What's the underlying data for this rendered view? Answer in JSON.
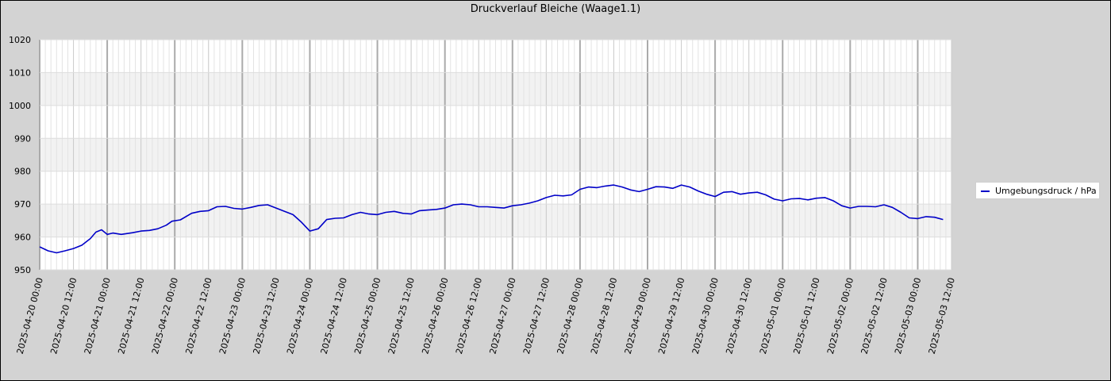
{
  "chart_data": {
    "type": "line",
    "title": "Druckverlauf Bleiche (Waage1.1)",
    "xlabel": "",
    "ylabel": "",
    "ylim": [
      950,
      1020
    ],
    "yticks": [
      950,
      960,
      970,
      980,
      990,
      1000,
      1010,
      1020
    ],
    "xlim": [
      "2025-04-20 00:00",
      "2025-05-03 12:00"
    ],
    "xticks": [
      "2025-04-20 00:00",
      "2025-04-20 12:00",
      "2025-04-21 00:00",
      "2025-04-21 12:00",
      "2025-04-22 00:00",
      "2025-04-22 12:00",
      "2025-04-23 00:00",
      "2025-04-23 12:00",
      "2025-04-24 00:00",
      "2025-04-24 12:00",
      "2025-04-25 00:00",
      "2025-04-25 12:00",
      "2025-04-26 00:00",
      "2025-04-26 12:00",
      "2025-04-27 00:00",
      "2025-04-27 12:00",
      "2025-04-28 00:00",
      "2025-04-28 12:00",
      "2025-04-29 00:00",
      "2025-04-29 12:00",
      "2025-04-30 00:00",
      "2025-04-30 12:00",
      "2025-05-01 00:00",
      "2025-05-01 12:00",
      "2025-05-02 00:00",
      "2025-05-02 12:00",
      "2025-05-03 00:00",
      "2025-05-03 12:00"
    ],
    "grid": true,
    "legend_position": "right",
    "colors": {
      "line": "#0000c8",
      "background": "#d3d3d3",
      "plot_bg": "#ffffff",
      "band": "#f2f2f2",
      "major_grid": "#bbbbbb",
      "minor_grid": "#e3e3e3"
    },
    "series": [
      {
        "name": "Umgebungsdruck / hPa",
        "x": [
          "2025-04-20 00:00",
          "2025-04-20 03:00",
          "2025-04-20 06:00",
          "2025-04-20 09:00",
          "2025-04-20 12:00",
          "2025-04-20 15:00",
          "2025-04-20 18:00",
          "2025-04-20 20:00",
          "2025-04-20 22:00",
          "2025-04-21 00:00",
          "2025-04-21 02:00",
          "2025-04-21 05:00",
          "2025-04-21 09:00",
          "2025-04-21 12:00",
          "2025-04-21 15:00",
          "2025-04-21 18:00",
          "2025-04-21 21:00",
          "2025-04-21 23:00",
          "2025-04-22 02:00",
          "2025-04-22 06:00",
          "2025-04-22 09:00",
          "2025-04-22 12:00",
          "2025-04-22 15:00",
          "2025-04-22 18:00",
          "2025-04-22 21:00",
          "2025-04-23 00:00",
          "2025-04-23 03:00",
          "2025-04-23 06:00",
          "2025-04-23 09:00",
          "2025-04-23 12:00",
          "2025-04-23 15:00",
          "2025-04-23 18:00",
          "2025-04-23 21:00",
          "2025-04-24 00:00",
          "2025-04-24 03:00",
          "2025-04-24 06:00",
          "2025-04-24 09:00",
          "2025-04-24 12:00",
          "2025-04-24 15:00",
          "2025-04-24 18:00",
          "2025-04-24 21:00",
          "2025-04-25 00:00",
          "2025-04-25 03:00",
          "2025-04-25 06:00",
          "2025-04-25 09:00",
          "2025-04-25 12:00",
          "2025-04-25 15:00",
          "2025-04-25 18:00",
          "2025-04-25 21:00",
          "2025-04-26 00:00",
          "2025-04-26 03:00",
          "2025-04-26 06:00",
          "2025-04-26 09:00",
          "2025-04-26 12:00",
          "2025-04-26 15:00",
          "2025-04-26 18:00",
          "2025-04-26 21:00",
          "2025-04-27 00:00",
          "2025-04-27 03:00",
          "2025-04-27 06:00",
          "2025-04-27 09:00",
          "2025-04-27 12:00",
          "2025-04-27 15:00",
          "2025-04-27 18:00",
          "2025-04-27 21:00",
          "2025-04-28 00:00",
          "2025-04-28 03:00",
          "2025-04-28 06:00",
          "2025-04-28 09:00",
          "2025-04-28 12:00",
          "2025-04-28 15:00",
          "2025-04-28 18:00",
          "2025-04-28 21:00",
          "2025-04-29 00:00",
          "2025-04-29 03:00",
          "2025-04-29 06:00",
          "2025-04-29 09:00",
          "2025-04-29 12:00",
          "2025-04-29 15:00",
          "2025-04-29 18:00",
          "2025-04-29 21:00",
          "2025-04-30 00:00",
          "2025-04-30 03:00",
          "2025-04-30 06:00",
          "2025-04-30 09:00",
          "2025-04-30 12:00",
          "2025-04-30 15:00",
          "2025-04-30 18:00",
          "2025-04-30 21:00",
          "2025-05-01 00:00",
          "2025-05-01 03:00",
          "2025-05-01 06:00",
          "2025-05-01 09:00",
          "2025-05-01 12:00",
          "2025-05-01 15:00",
          "2025-05-01 18:00",
          "2025-05-01 21:00",
          "2025-05-02 00:00",
          "2025-05-02 03:00",
          "2025-05-02 06:00",
          "2025-05-02 09:00",
          "2025-05-02 12:00",
          "2025-05-02 15:00",
          "2025-05-02 18:00",
          "2025-05-02 21:00",
          "2025-05-03 00:00",
          "2025-05-03 03:00",
          "2025-05-03 06:00",
          "2025-05-03 09:00"
        ],
        "values": [
          957.0,
          955.8,
          955.2,
          955.8,
          956.5,
          957.5,
          959.5,
          961.5,
          962.2,
          960.8,
          961.2,
          960.8,
          961.3,
          961.8,
          962.0,
          962.5,
          963.6,
          964.8,
          965.2,
          967.2,
          967.8,
          968.0,
          969.2,
          969.3,
          968.7,
          968.5,
          969.0,
          969.6,
          969.8,
          968.8,
          967.8,
          966.8,
          964.5,
          961.8,
          962.5,
          965.3,
          965.7,
          965.8,
          966.8,
          967.5,
          967.0,
          966.8,
          967.5,
          967.8,
          967.2,
          967.0,
          968.0,
          968.2,
          968.4,
          968.8,
          969.8,
          970.0,
          969.8,
          969.2,
          969.2,
          969.0,
          968.8,
          969.5,
          969.8,
          970.3,
          971.0,
          972.0,
          972.7,
          972.5,
          972.8,
          974.5,
          975.2,
          975.0,
          975.5,
          975.8,
          975.2,
          974.3,
          973.8,
          974.5,
          975.3,
          975.2,
          974.8,
          975.8,
          975.2,
          974.0,
          973.0,
          972.3,
          973.6,
          973.8,
          973.0,
          973.4,
          973.6,
          972.8,
          971.5,
          971.0,
          971.6,
          971.7,
          971.3,
          971.8,
          972.0,
          971.0,
          969.5,
          968.8,
          969.3,
          969.3,
          969.2,
          969.8,
          969.0,
          967.5,
          965.8,
          965.6,
          966.2,
          966.0,
          965.3
        ]
      }
    ]
  }
}
